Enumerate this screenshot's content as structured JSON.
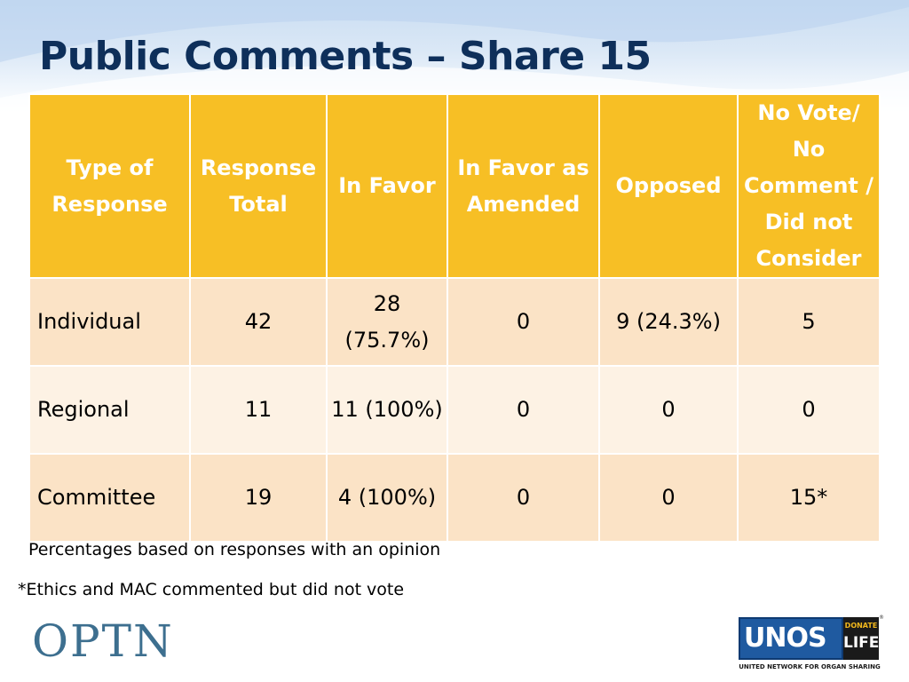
{
  "slide": {
    "title": "Public Comments – Share 15"
  },
  "table": {
    "headers": [
      "Type of Response",
      "Response Total",
      "In Favor",
      "In Favor as Amended",
      "Opposed",
      "No Vote/ No Comment / Did not Consider"
    ],
    "rows": [
      {
        "type": "Individual",
        "total": "42",
        "in_favor": "28 (75.7%)",
        "amended": "0",
        "opposed": "9 (24.3%)",
        "no_vote": "5"
      },
      {
        "type": "Regional",
        "total": "11",
        "in_favor": "11 (100%)",
        "amended": "0",
        "opposed": "0",
        "no_vote": "0"
      },
      {
        "type": "Committee",
        "total": "19",
        "in_favor": "4 (100%)",
        "amended": "0",
        "opposed": "0",
        "no_vote": "15*"
      }
    ]
  },
  "notes": {
    "percentages": "Percentages based on responses with an opinion",
    "ethics": "*Ethics and MAC commented but did not vote"
  },
  "logos": {
    "optn": "OPTN",
    "unos": "UNOS",
    "donate": "DONATE",
    "life": "LIFE",
    "unos_tagline": "UNITED NETWORK FOR ORGAN SHARING",
    "registered": "®"
  },
  "colors": {
    "title": "#0e2f5a",
    "header_bg": "#f7bf25",
    "row_a_bg": "#fbe3c6",
    "row_b_bg": "#fdf2e4",
    "optn": "#3d6f8f",
    "unos_blue": "#1f5aa0"
  }
}
